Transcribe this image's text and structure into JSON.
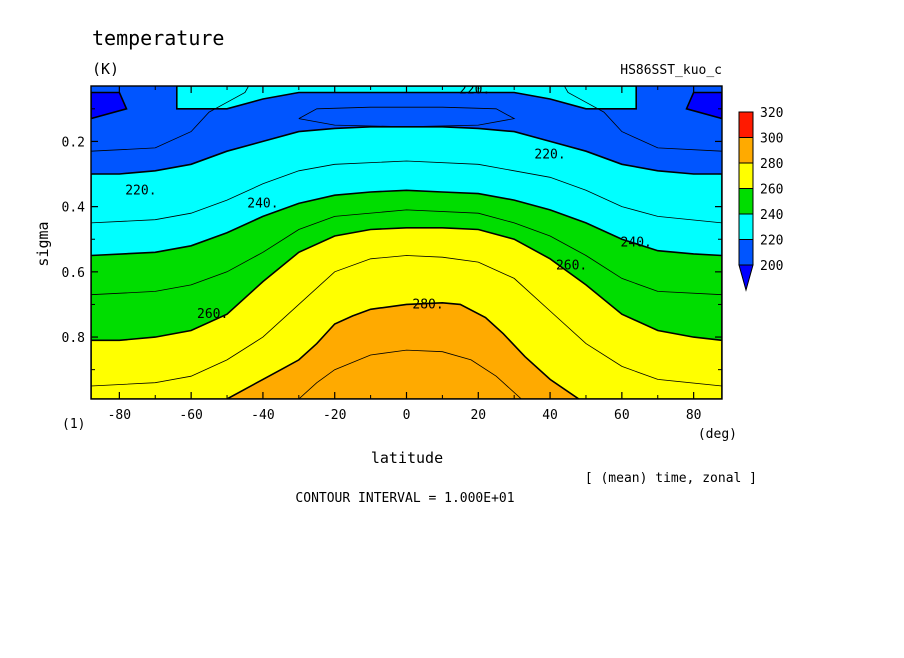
{
  "title": "temperature",
  "units": "(K)",
  "run_name": "HS86SST_kuo_c",
  "reduction_note": "[ (mean) time, zonal ]",
  "contour_interval": "CONTOUR INTERVAL = 1.000E+01",
  "scale_factor": "(1)",
  "x_unit": "(deg)",
  "chart_data": {
    "type": "contour",
    "title": "temperature",
    "xlabel": "latitude",
    "ylabel": "sigma",
    "xlim": [
      -87.9,
      87.9
    ],
    "ylim": [
      0.03,
      0.99
    ],
    "y_inverted": true,
    "x_ticks": [
      -80,
      -60,
      -40,
      -20,
      0,
      20,
      40,
      60,
      80
    ],
    "x_tick_labels": [
      "-80",
      "-60",
      "-40",
      "-20",
      "0",
      "20",
      "40",
      "60",
      "80"
    ],
    "y_ticks": [
      0.2,
      0.4,
      0.6,
      0.8
    ],
    "y_tick_labels": [
      "0.2",
      "0.4",
      "0.6",
      "0.8"
    ],
    "contour_interval": 10,
    "labeled_contours": [
      {
        "label": "220.",
        "lat": -74,
        "sigma": 0.35
      },
      {
        "label": "220.",
        "lat": 19,
        "sigma": 0.04
      },
      {
        "label": "220.",
        "lat": 40,
        "sigma": 0.24
      },
      {
        "label": "240.",
        "lat": -40,
        "sigma": 0.39
      },
      {
        "label": "240.",
        "lat": 64,
        "sigma": 0.51
      },
      {
        "label": "260.",
        "lat": -54,
        "sigma": 0.73
      },
      {
        "label": "260.",
        "lat": 46,
        "sigma": 0.58
      },
      {
        "label": "280.",
        "lat": 6,
        "sigma": 0.7
      }
    ],
    "colorbar": {
      "levels": [
        "200",
        "220",
        "240",
        "260",
        "280",
        "300",
        "320"
      ],
      "colors": [
        "#0055ff",
        "#00ffff",
        "#00dd00",
        "#ffff00",
        "#ffaa00",
        "#ff1a00"
      ],
      "below_color": "#0000ff"
    },
    "fields": [
      {
        "level": 200,
        "color": "#0055ff",
        "boundary": [
          [
            -87.9,
            0.03
          ],
          [
            87.9,
            0.03
          ],
          [
            87.9,
            0.99
          ],
          [
            -87.9,
            0.99
          ]
        ]
      },
      {
        "level": 220,
        "color": "#00ffff",
        "boundary": [
          [
            -87.9,
            0.3
          ],
          [
            -80,
            0.3
          ],
          [
            -70,
            0.29
          ],
          [
            -60,
            0.27
          ],
          [
            -50,
            0.23
          ],
          [
            -40,
            0.2
          ],
          [
            -30,
            0.17
          ],
          [
            -20,
            0.16
          ],
          [
            -10,
            0.155
          ],
          [
            0,
            0.155
          ],
          [
            10,
            0.155
          ],
          [
            20,
            0.16
          ],
          [
            30,
            0.17
          ],
          [
            40,
            0.2
          ],
          [
            50,
            0.23
          ],
          [
            60,
            0.27
          ],
          [
            70,
            0.29
          ],
          [
            80,
            0.3
          ],
          [
            87.9,
            0.3
          ],
          [
            87.9,
            0.99
          ],
          [
            -87.9,
            0.99
          ]
        ]
      },
      {
        "level": 240,
        "color": "#00dd00",
        "boundary": [
          [
            -87.9,
            0.55
          ],
          [
            -70,
            0.54
          ],
          [
            -60,
            0.52
          ],
          [
            -50,
            0.48
          ],
          [
            -40,
            0.43
          ],
          [
            -30,
            0.39
          ],
          [
            -20,
            0.365
          ],
          [
            -10,
            0.355
          ],
          [
            0,
            0.35
          ],
          [
            10,
            0.355
          ],
          [
            20,
            0.36
          ],
          [
            30,
            0.38
          ],
          [
            40,
            0.41
          ],
          [
            50,
            0.45
          ],
          [
            60,
            0.5
          ],
          [
            70,
            0.535
          ],
          [
            80,
            0.545
          ],
          [
            87.9,
            0.55
          ],
          [
            87.9,
            0.99
          ],
          [
            -87.9,
            0.99
          ]
        ]
      },
      {
        "level": 260,
        "color": "#ffff00",
        "boundary": [
          [
            -87.9,
            0.81
          ],
          [
            -80,
            0.81
          ],
          [
            -70,
            0.8
          ],
          [
            -60,
            0.78
          ],
          [
            -50,
            0.73
          ],
          [
            -40,
            0.63
          ],
          [
            -30,
            0.54
          ],
          [
            -20,
            0.49
          ],
          [
            -10,
            0.47
          ],
          [
            0,
            0.465
          ],
          [
            10,
            0.465
          ],
          [
            20,
            0.47
          ],
          [
            30,
            0.5
          ],
          [
            40,
            0.56
          ],
          [
            50,
            0.64
          ],
          [
            60,
            0.73
          ],
          [
            70,
            0.78
          ],
          [
            80,
            0.8
          ],
          [
            87.9,
            0.81
          ],
          [
            87.9,
            0.99
          ],
          [
            -87.9,
            0.99
          ]
        ]
      },
      {
        "level": 280,
        "color": "#ffaa00",
        "boundary": [
          [
            -50,
            0.99
          ],
          [
            -45,
            0.96
          ],
          [
            -40,
            0.93
          ],
          [
            -35,
            0.9
          ],
          [
            -30,
            0.87
          ],
          [
            -25,
            0.82
          ],
          [
            -20,
            0.76
          ],
          [
            -15,
            0.735
          ],
          [
            -10,
            0.715
          ],
          [
            0,
            0.7
          ],
          [
            10,
            0.695
          ],
          [
            15,
            0.7
          ],
          [
            22,
            0.74
          ],
          [
            27,
            0.79
          ],
          [
            33,
            0.86
          ],
          [
            40,
            0.93
          ],
          [
            48,
            0.99
          ]
        ]
      }
    ],
    "thin_contours": [
      [
        [
          -87.9,
          0.23
        ],
        [
          -70,
          0.22
        ],
        [
          -60,
          0.17
        ],
        [
          -55,
          0.11
        ],
        [
          -50,
          0.08
        ],
        [
          -45,
          0.05
        ],
        [
          -44,
          0.03
        ]
      ],
      [
        [
          44,
          0.03
        ],
        [
          45,
          0.05
        ],
        [
          50,
          0.08
        ],
        [
          55,
          0.11
        ],
        [
          60,
          0.17
        ],
        [
          70,
          0.22
        ],
        [
          87.9,
          0.23
        ]
      ],
      [
        [
          -30,
          0.13
        ],
        [
          -25,
          0.1
        ],
        [
          -10,
          0.095
        ],
        [
          10,
          0.095
        ],
        [
          25,
          0.1
        ],
        [
          30,
          0.13
        ],
        [
          20,
          0.15
        ],
        [
          0,
          0.155
        ],
        [
          -20,
          0.15
        ],
        [
          -30,
          0.13
        ]
      ],
      [
        [
          -87.9,
          0.45
        ],
        [
          -70,
          0.44
        ],
        [
          -60,
          0.42
        ],
        [
          -50,
          0.38
        ],
        [
          -40,
          0.33
        ],
        [
          -30,
          0.29
        ],
        [
          -20,
          0.27
        ],
        [
          0,
          0.26
        ],
        [
          20,
          0.27
        ],
        [
          30,
          0.29
        ],
        [
          40,
          0.31
        ],
        [
          50,
          0.35
        ],
        [
          60,
          0.4
        ],
        [
          70,
          0.43
        ],
        [
          87.9,
          0.45
        ]
      ],
      [
        [
          -87.9,
          0.67
        ],
        [
          -70,
          0.66
        ],
        [
          -60,
          0.64
        ],
        [
          -50,
          0.6
        ],
        [
          -40,
          0.54
        ],
        [
          -30,
          0.47
        ],
        [
          -20,
          0.43
        ],
        [
          0,
          0.41
        ],
        [
          20,
          0.42
        ],
        [
          30,
          0.45
        ],
        [
          40,
          0.49
        ],
        [
          50,
          0.55
        ],
        [
          60,
          0.62
        ],
        [
          70,
          0.66
        ],
        [
          87.9,
          0.67
        ]
      ],
      [
        [
          -87.9,
          0.95
        ],
        [
          -70,
          0.94
        ],
        [
          -60,
          0.92
        ],
        [
          -50,
          0.87
        ],
        [
          -40,
          0.8
        ],
        [
          -30,
          0.7
        ],
        [
          -20,
          0.6
        ],
        [
          -10,
          0.56
        ],
        [
          0,
          0.55
        ],
        [
          10,
          0.555
        ],
        [
          20,
          0.57
        ],
        [
          30,
          0.62
        ],
        [
          40,
          0.72
        ],
        [
          50,
          0.82
        ],
        [
          60,
          0.89
        ],
        [
          70,
          0.93
        ],
        [
          87.9,
          0.95
        ]
      ],
      [
        [
          -30,
          0.99
        ],
        [
          -25,
          0.94
        ],
        [
          -20,
          0.9
        ],
        [
          -10,
          0.855
        ],
        [
          0,
          0.84
        ],
        [
          10,
          0.845
        ],
        [
          18,
          0.87
        ],
        [
          25,
          0.92
        ],
        [
          32,
          0.99
        ]
      ]
    ],
    "pole_patches": [
      {
        "level": 200,
        "color": "#0000ff",
        "boundary": [
          [
            -87.9,
            0.05
          ],
          [
            -80,
            0.05
          ],
          [
            -78,
            0.1
          ],
          [
            -87.9,
            0.13
          ]
        ]
      },
      {
        "level": 200,
        "color": "#0000ff",
        "boundary": [
          [
            87.9,
            0.05
          ],
          [
            80,
            0.05
          ],
          [
            78,
            0.1
          ],
          [
            87.9,
            0.13
          ]
        ]
      }
    ],
    "cyan_cap": [
      [
        -64,
        0.03
      ],
      [
        -64,
        0.1
      ],
      [
        -50,
        0.1
      ],
      [
        -40,
        0.07
      ],
      [
        -30,
        0.05
      ],
      [
        30,
        0.05
      ],
      [
        40,
        0.07
      ],
      [
        50,
        0.1
      ],
      [
        64,
        0.1
      ],
      [
        64,
        0.03
      ]
    ]
  }
}
